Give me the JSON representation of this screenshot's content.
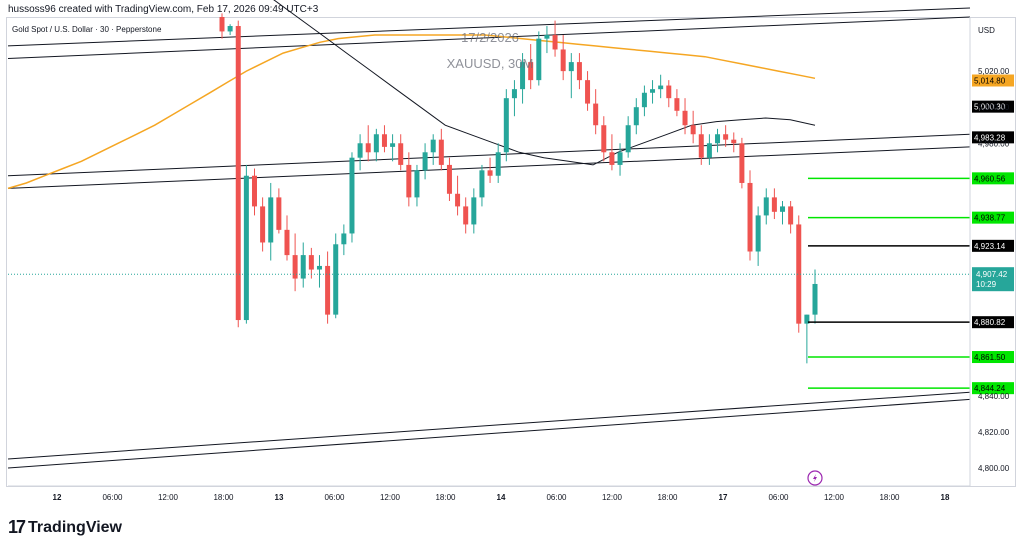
{
  "caption": "hussoss96 created with TradingView.com, Feb 17, 2026 09:49 UTC+3",
  "brand": {
    "name": "TradingView",
    "icon": "tradingview-logo-icon"
  },
  "header": {
    "currency": "USD",
    "symbol_title": "Gold Spot / U.S. Dollar · 30 · Pepperstone",
    "watermark_date": "17/2/2026",
    "watermark_symbol": "XAUUSD, 30M"
  },
  "lightning_icon": "lightning-icon",
  "colors": {
    "up": "#26a69a",
    "down": "#ef5350",
    "ma": "#f5a623",
    "level_green": "#00e600",
    "level_black": "#000000",
    "last_price": "#26a69a",
    "dotted": "#26a69a"
  },
  "chart_data": {
    "type": "candlestick",
    "ylim": [
      4790,
      5050
    ],
    "y_ticks": [
      4800,
      4820,
      4840,
      4980,
      5000,
      5020
    ],
    "y_tick_labels": [
      "4,800.00",
      "4,820.00",
      "4,840.00",
      "4,980.00",
      "5,000.00",
      "5,020.00"
    ],
    "x_ticks": [
      "12",
      "06:00",
      "12:00",
      "18:00",
      "13",
      "06:00",
      "12:00",
      "18:00",
      "14",
      "06:00",
      "12:00",
      "18:00",
      "17",
      "06:00",
      "12:00",
      "18:00",
      "18"
    ],
    "x_tick_bold": [
      true,
      false,
      false,
      false,
      true,
      false,
      false,
      false,
      true,
      false,
      false,
      false,
      true,
      false,
      false,
      false,
      true
    ],
    "candles": [
      {
        "o": 5050,
        "h": 5052,
        "l": 5038,
        "c": 5042
      },
      {
        "o": 5042,
        "h": 5046,
        "l": 5040,
        "c": 5045
      },
      {
        "o": 5045,
        "h": 5048,
        "l": 4878,
        "c": 4882
      },
      {
        "o": 4882,
        "h": 4968,
        "l": 4880,
        "c": 4962
      },
      {
        "o": 4962,
        "h": 4966,
        "l": 4940,
        "c": 4945
      },
      {
        "o": 4945,
        "h": 4950,
        "l": 4920,
        "c": 4925
      },
      {
        "o": 4925,
        "h": 4958,
        "l": 4915,
        "c": 4950
      },
      {
        "o": 4950,
        "h": 4955,
        "l": 4930,
        "c": 4932
      },
      {
        "o": 4932,
        "h": 4940,
        "l": 4915,
        "c": 4918
      },
      {
        "o": 4918,
        "h": 4930,
        "l": 4898,
        "c": 4905
      },
      {
        "o": 4905,
        "h": 4925,
        "l": 4900,
        "c": 4918
      },
      {
        "o": 4918,
        "h": 4922,
        "l": 4905,
        "c": 4910
      },
      {
        "o": 4910,
        "h": 4918,
        "l": 4900,
        "c": 4912
      },
      {
        "o": 4912,
        "h": 4920,
        "l": 4880,
        "c": 4885
      },
      {
        "o": 4885,
        "h": 4930,
        "l": 4883,
        "c": 4924
      },
      {
        "o": 4924,
        "h": 4935,
        "l": 4918,
        "c": 4930
      },
      {
        "o": 4930,
        "h": 4975,
        "l": 4925,
        "c": 4972
      },
      {
        "o": 4972,
        "h": 4985,
        "l": 4965,
        "c": 4980
      },
      {
        "o": 4980,
        "h": 4990,
        "l": 4970,
        "c": 4975
      },
      {
        "o": 4975,
        "h": 4988,
        "l": 4970,
        "c": 4985
      },
      {
        "o": 4985,
        "h": 4990,
        "l": 4975,
        "c": 4978
      },
      {
        "o": 4978,
        "h": 4985,
        "l": 4970,
        "c": 4980
      },
      {
        "o": 4980,
        "h": 4985,
        "l": 4965,
        "c": 4968
      },
      {
        "o": 4968,
        "h": 4975,
        "l": 4945,
        "c": 4950
      },
      {
        "o": 4950,
        "h": 4968,
        "l": 4945,
        "c": 4965
      },
      {
        "o": 4965,
        "h": 4980,
        "l": 4960,
        "c": 4975
      },
      {
        "o": 4975,
        "h": 4985,
        "l": 4968,
        "c": 4982
      },
      {
        "o": 4982,
        "h": 4988,
        "l": 4965,
        "c": 4968
      },
      {
        "o": 4968,
        "h": 4972,
        "l": 4948,
        "c": 4952
      },
      {
        "o": 4952,
        "h": 4962,
        "l": 4940,
        "c": 4945
      },
      {
        "o": 4945,
        "h": 4950,
        "l": 4930,
        "c": 4935
      },
      {
        "o": 4935,
        "h": 4955,
        "l": 4930,
        "c": 4950
      },
      {
        "o": 4950,
        "h": 4968,
        "l": 4945,
        "c": 4965
      },
      {
        "o": 4965,
        "h": 4972,
        "l": 4958,
        "c": 4962
      },
      {
        "o": 4962,
        "h": 4980,
        "l": 4958,
        "c": 4975
      },
      {
        "o": 4975,
        "h": 5010,
        "l": 4970,
        "c": 5005
      },
      {
        "o": 5005,
        "h": 5015,
        "l": 4995,
        "c": 5010
      },
      {
        "o": 5010,
        "h": 5030,
        "l": 5002,
        "c": 5025
      },
      {
        "o": 5025,
        "h": 5035,
        "l": 5010,
        "c": 5015
      },
      {
        "o": 5015,
        "h": 5042,
        "l": 5012,
        "c": 5038
      },
      {
        "o": 5038,
        "h": 5045,
        "l": 5030,
        "c": 5040
      },
      {
        "o": 5040,
        "h": 5048,
        "l": 5028,
        "c": 5032
      },
      {
        "o": 5032,
        "h": 5040,
        "l": 5015,
        "c": 5020
      },
      {
        "o": 5020,
        "h": 5030,
        "l": 5005,
        "c": 5025
      },
      {
        "o": 5025,
        "h": 5030,
        "l": 5010,
        "c": 5015
      },
      {
        "o": 5015,
        "h": 5020,
        "l": 4998,
        "c": 5002
      },
      {
        "o": 5002,
        "h": 5010,
        "l": 4985,
        "c": 4990
      },
      {
        "o": 4990,
        "h": 4995,
        "l": 4970,
        "c": 4975
      },
      {
        "o": 4975,
        "h": 4985,
        "l": 4965,
        "c": 4968
      },
      {
        "o": 4968,
        "h": 4980,
        "l": 4962,
        "c": 4975
      },
      {
        "o": 4975,
        "h": 4995,
        "l": 4972,
        "c": 4990
      },
      {
        "o": 4990,
        "h": 5005,
        "l": 4985,
        "c": 5000
      },
      {
        "o": 5000,
        "h": 5012,
        "l": 4995,
        "c": 5008
      },
      {
        "o": 5008,
        "h": 5015,
        "l": 5002,
        "c": 5010
      },
      {
        "o": 5010,
        "h": 5018,
        "l": 5005,
        "c": 5012
      },
      {
        "o": 5012,
        "h": 5015,
        "l": 5000,
        "c": 5005
      },
      {
        "o": 5005,
        "h": 5010,
        "l": 4995,
        "c": 4998
      },
      {
        "o": 4998,
        "h": 5005,
        "l": 4985,
        "c": 4990
      },
      {
        "o": 4990,
        "h": 4998,
        "l": 4980,
        "c": 4985
      },
      {
        "o": 4985,
        "h": 4990,
        "l": 4968,
        "c": 4972
      },
      {
        "o": 4972,
        "h": 4985,
        "l": 4968,
        "c": 4980
      },
      {
        "o": 4980,
        "h": 4988,
        "l": 4975,
        "c": 4985
      },
      {
        "o": 4985,
        "h": 4990,
        "l": 4978,
        "c": 4982
      },
      {
        "o": 4982,
        "h": 4986,
        "l": 4975,
        "c": 4980
      },
      {
        "o": 4980,
        "h": 4983,
        "l": 4955,
        "c": 4958
      },
      {
        "o": 4958,
        "h": 4965,
        "l": 4915,
        "c": 4920
      },
      {
        "o": 4920,
        "h": 4945,
        "l": 4912,
        "c": 4940
      },
      {
        "o": 4940,
        "h": 4955,
        "l": 4935,
        "c": 4950
      },
      {
        "o": 4950,
        "h": 4955,
        "l": 4938,
        "c": 4942
      },
      {
        "o": 4942,
        "h": 4948,
        "l": 4935,
        "c": 4945
      },
      {
        "o": 4945,
        "h": 4948,
        "l": 4930,
        "c": 4935
      },
      {
        "o": 4935,
        "h": 4940,
        "l": 4875,
        "c": 4880
      },
      {
        "o": 4880,
        "h": 4885,
        "l": 4858,
        "c": 4885
      },
      {
        "o": 4885,
        "h": 4910,
        "l": 4880,
        "c": 4902
      }
    ],
    "ma_orange": [
      4955,
      4958,
      4962,
      4966,
      4970,
      4975,
      4980,
      4985,
      4990,
      4996,
      5002,
      5008,
      5014,
      5020,
      5025,
      5030,
      5033,
      5036,
      5038,
      5039,
      5040,
      5040,
      5040,
      5040,
      5040,
      5040,
      5040,
      5039,
      5038,
      5037,
      5036,
      5035,
      5034,
      5033,
      5032,
      5031,
      5030,
      5029,
      5028,
      5026,
      5024,
      5022,
      5020,
      5018,
      5016
    ],
    "ma_black": [
      5070,
      5060,
      5050,
      5040,
      5030,
      5020,
      5010,
      5000,
      4990,
      4985,
      4980,
      4975,
      4972,
      4970,
      4968,
      4975,
      4980,
      4985,
      4990,
      4992,
      4993,
      4994,
      4993,
      4990
    ],
    "channel_lines": [
      {
        "y1": 5034,
        "y2": 5055
      },
      {
        "y1": 5027,
        "y2": 5050
      },
      {
        "y1": 4962,
        "y2": 4985
      },
      {
        "y1": 4955,
        "y2": 4978
      },
      {
        "y1": 4805,
        "y2": 4842
      },
      {
        "y1": 4800,
        "y2": 4838
      }
    ],
    "levels": [
      {
        "value": 4960.56,
        "label": "4,960.56",
        "color": "#00e600"
      },
      {
        "value": 4938.77,
        "label": "4,938.77",
        "color": "#00e600"
      },
      {
        "value": 4923.14,
        "label": "4,923.14",
        "color": "#000000"
      },
      {
        "value": 4880.82,
        "label": "4,880.82",
        "color": "#000000"
      },
      {
        "value": 4861.5,
        "label": "4,861.50",
        "color": "#00e600"
      },
      {
        "value": 4844.24,
        "label": "4,844.24",
        "color": "#00e600"
      }
    ],
    "right_labels": [
      {
        "value": 5014.8,
        "label": "5,014.80",
        "bg": "#f5a623",
        "fg": "#000000"
      },
      {
        "value": 5000.3,
        "label": "5,000.30",
        "bg": "#000000",
        "fg": "#ffffff"
      },
      {
        "value": 4983.28,
        "label": "4,983.28",
        "bg": "#000000",
        "fg": "#ffffff"
      }
    ],
    "last_price": {
      "value": 4907.42,
      "label": "4,907.42",
      "timer": "10:29"
    }
  }
}
